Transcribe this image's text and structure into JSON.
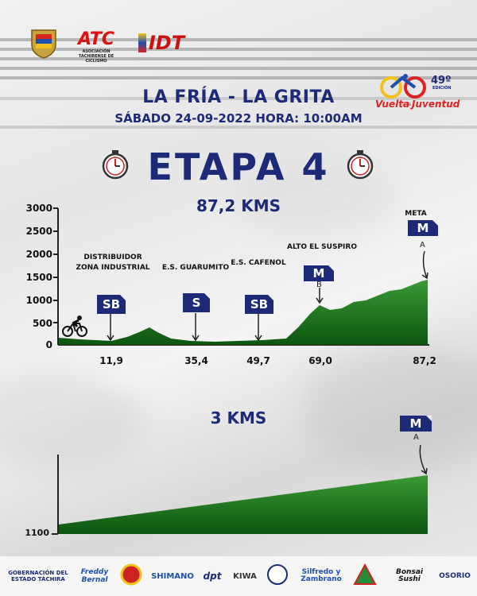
{
  "header": {
    "logo_atc": "ATC",
    "atc_caption": "ASOCIACIÓN TACHIRENSE DE CICLISMO",
    "logo_idt": "IDT",
    "event_number": "49º",
    "event_edition": "EDICIÓN",
    "event_name_1": "Vuelta",
    "event_name_2": "a la",
    "event_name_3": "Juventud"
  },
  "stage": {
    "route": "LA FRÍA - LA GRITA",
    "schedule": "SÁBADO 24-09-2022   HORA: 10:00AM",
    "title": "ETAPA 4",
    "distance": "87,2 KMS"
  },
  "profile": {
    "y_ticks": [
      "3000",
      "2500",
      "2000",
      "1500",
      "1000",
      "500",
      "0"
    ],
    "x_ticks": [
      "11,9",
      "35,4",
      "49,7",
      "69,0",
      "87,2"
    ],
    "points": [
      {
        "label": "DISTRIBUIDOR ZONA INDUSTRIAL",
        "badge": "SB",
        "km": 11.9
      },
      {
        "label": "E.S. GUARUMITO",
        "badge": "S",
        "km": 35.4
      },
      {
        "label": "E.S. CAFENOL",
        "badge": "SB",
        "km": 49.7
      },
      {
        "label": "ALTO EL SUSPIRO",
        "badge": "M",
        "sub": "B",
        "km": 69.0
      },
      {
        "label": "META",
        "badge": "M",
        "sub": "A",
        "km": 87.2
      }
    ],
    "colors": {
      "fill_top": "#2f8f2f",
      "fill_bottom": "#0e5a10",
      "badge": "#1d2a78"
    }
  },
  "final": {
    "distance": "3 KMS",
    "y_tick": "1100",
    "badge": "M",
    "sub": "A"
  },
  "sponsors": [
    "GOBERNACIÓN DEL ESTADO TÁCHIRA",
    "Freddy Bernal",
    "SHIMANO",
    "dpt",
    "KIWA",
    "Silfredo y Zambrano",
    "Bonsai Sushi",
    "OSORIO"
  ]
}
